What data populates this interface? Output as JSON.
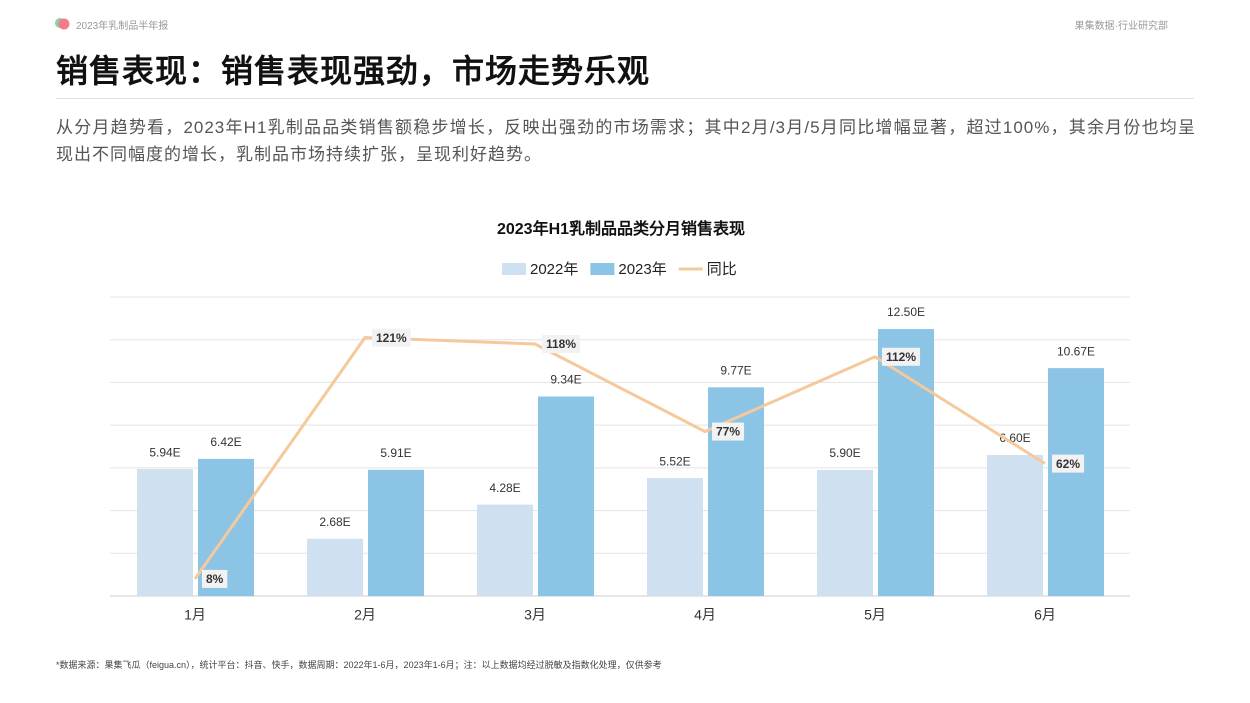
{
  "header": {
    "report": "2023年乳制品半年报",
    "source": "果集数据·行业研究部"
  },
  "title": "销售表现：销售表现强劲，市场走势乐观",
  "description": "从分月趋势看，2023年H1乳制品品类销售额稳步增长，反映出强劲的市场需求；其中2月/3月/5月同比增幅显著，超过100%，其余月份也均呈现出不同幅度的增长，乳制品市场持续扩张，呈现利好趋势。",
  "chart_data": {
    "type": "bar",
    "title": "2023年H1乳制品品类分月销售表现",
    "categories": [
      "1月",
      "2月",
      "3月",
      "4月",
      "5月",
      "6月"
    ],
    "series": [
      {
        "name": "2022年",
        "color": "#cfe0f0",
        "values": [
          5.94,
          2.68,
          4.28,
          5.52,
          5.9,
          6.6
        ],
        "value_labels": [
          "5.94E",
          "2.68E",
          "4.28E",
          "5.52E",
          "5.90E",
          "6.60E"
        ]
      },
      {
        "name": "2023年",
        "color": "#8cc4e6",
        "values": [
          6.42,
          5.91,
          9.34,
          9.77,
          12.5,
          10.67
        ],
        "value_labels": [
          "6.42E",
          "5.91E",
          "9.34E",
          "9.77E",
          "12.50E",
          "10.67E"
        ]
      },
      {
        "name": "同比",
        "type": "line",
        "axis": "y2",
        "color": "#f5c99c",
        "values": [
          8,
          121,
          118,
          77,
          112,
          62
        ],
        "value_labels": [
          "8%",
          "121%",
          "118%",
          "77%",
          "112%",
          "62%"
        ]
      }
    ],
    "ylim": [
      0,
      14
    ],
    "yticks": [
      0,
      2,
      4,
      6,
      8,
      10,
      12,
      14
    ],
    "y2lim": [
      0,
      140
    ],
    "grid": true,
    "legend": "top"
  },
  "footnote": "*数据来源：果集飞瓜（feigua.cn），统计平台：抖音、快手，数据周期：2022年1-6月，2023年1-6月；注：以上数据均经过脱敏及指数化处理，仅供参考"
}
